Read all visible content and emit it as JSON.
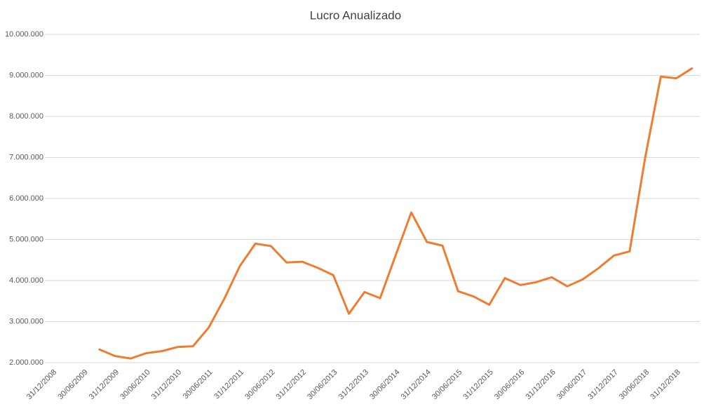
{
  "chart_data": {
    "type": "line",
    "title": "Lucro Anualizado",
    "categories": [
      "31/12/2008",
      null,
      "30/06/2009",
      null,
      "31/12/2009",
      null,
      "30/06/2010",
      null,
      "31/12/2010",
      null,
      "30/06/2011",
      null,
      "31/12/2011",
      null,
      "30/06/2012",
      null,
      "31/12/2012",
      null,
      "30/06/2013",
      null,
      "31/12/2013",
      null,
      "30/06/2014",
      null,
      "31/12/2014",
      null,
      "30/06/2015",
      null,
      "31/12/2015",
      null,
      "30/06/2016",
      null,
      "31/12/2016",
      null,
      "30/06/2017",
      null,
      "31/12/2017",
      null,
      "30/06/2018",
      null,
      "31/12/2018",
      null
    ],
    "values": [
      null,
      null,
      null,
      2320000,
      2160000,
      2100000,
      2230000,
      2280000,
      2380000,
      2400000,
      2850000,
      3550000,
      4350000,
      4900000,
      4840000,
      4440000,
      4460000,
      4310000,
      4130000,
      3190000,
      3720000,
      3570000,
      4620000,
      5660000,
      4940000,
      4850000,
      3740000,
      3610000,
      3410000,
      4060000,
      3890000,
      3960000,
      4080000,
      3860000,
      4030000,
      4300000,
      4610000,
      4710000,
      7000000,
      8970000,
      8930000,
      9170000
    ],
    "color": "#ed7d31",
    "ylim": [
      2000000,
      10000000
    ],
    "yticks": [
      {
        "value": 2000000,
        "label": "2.000.000"
      },
      {
        "value": 3000000,
        "label": "3.000.000"
      },
      {
        "value": 4000000,
        "label": "4.000.000"
      },
      {
        "value": 5000000,
        "label": "5.000.000"
      },
      {
        "value": 6000000,
        "label": "6.000.000"
      },
      {
        "value": 7000000,
        "label": "7.000.000"
      },
      {
        "value": 8000000,
        "label": "8.000.000"
      },
      {
        "value": 9000000,
        "label": "9.000.000"
      },
      {
        "value": 10000000,
        "label": "10.000.000"
      }
    ],
    "grid": true
  }
}
